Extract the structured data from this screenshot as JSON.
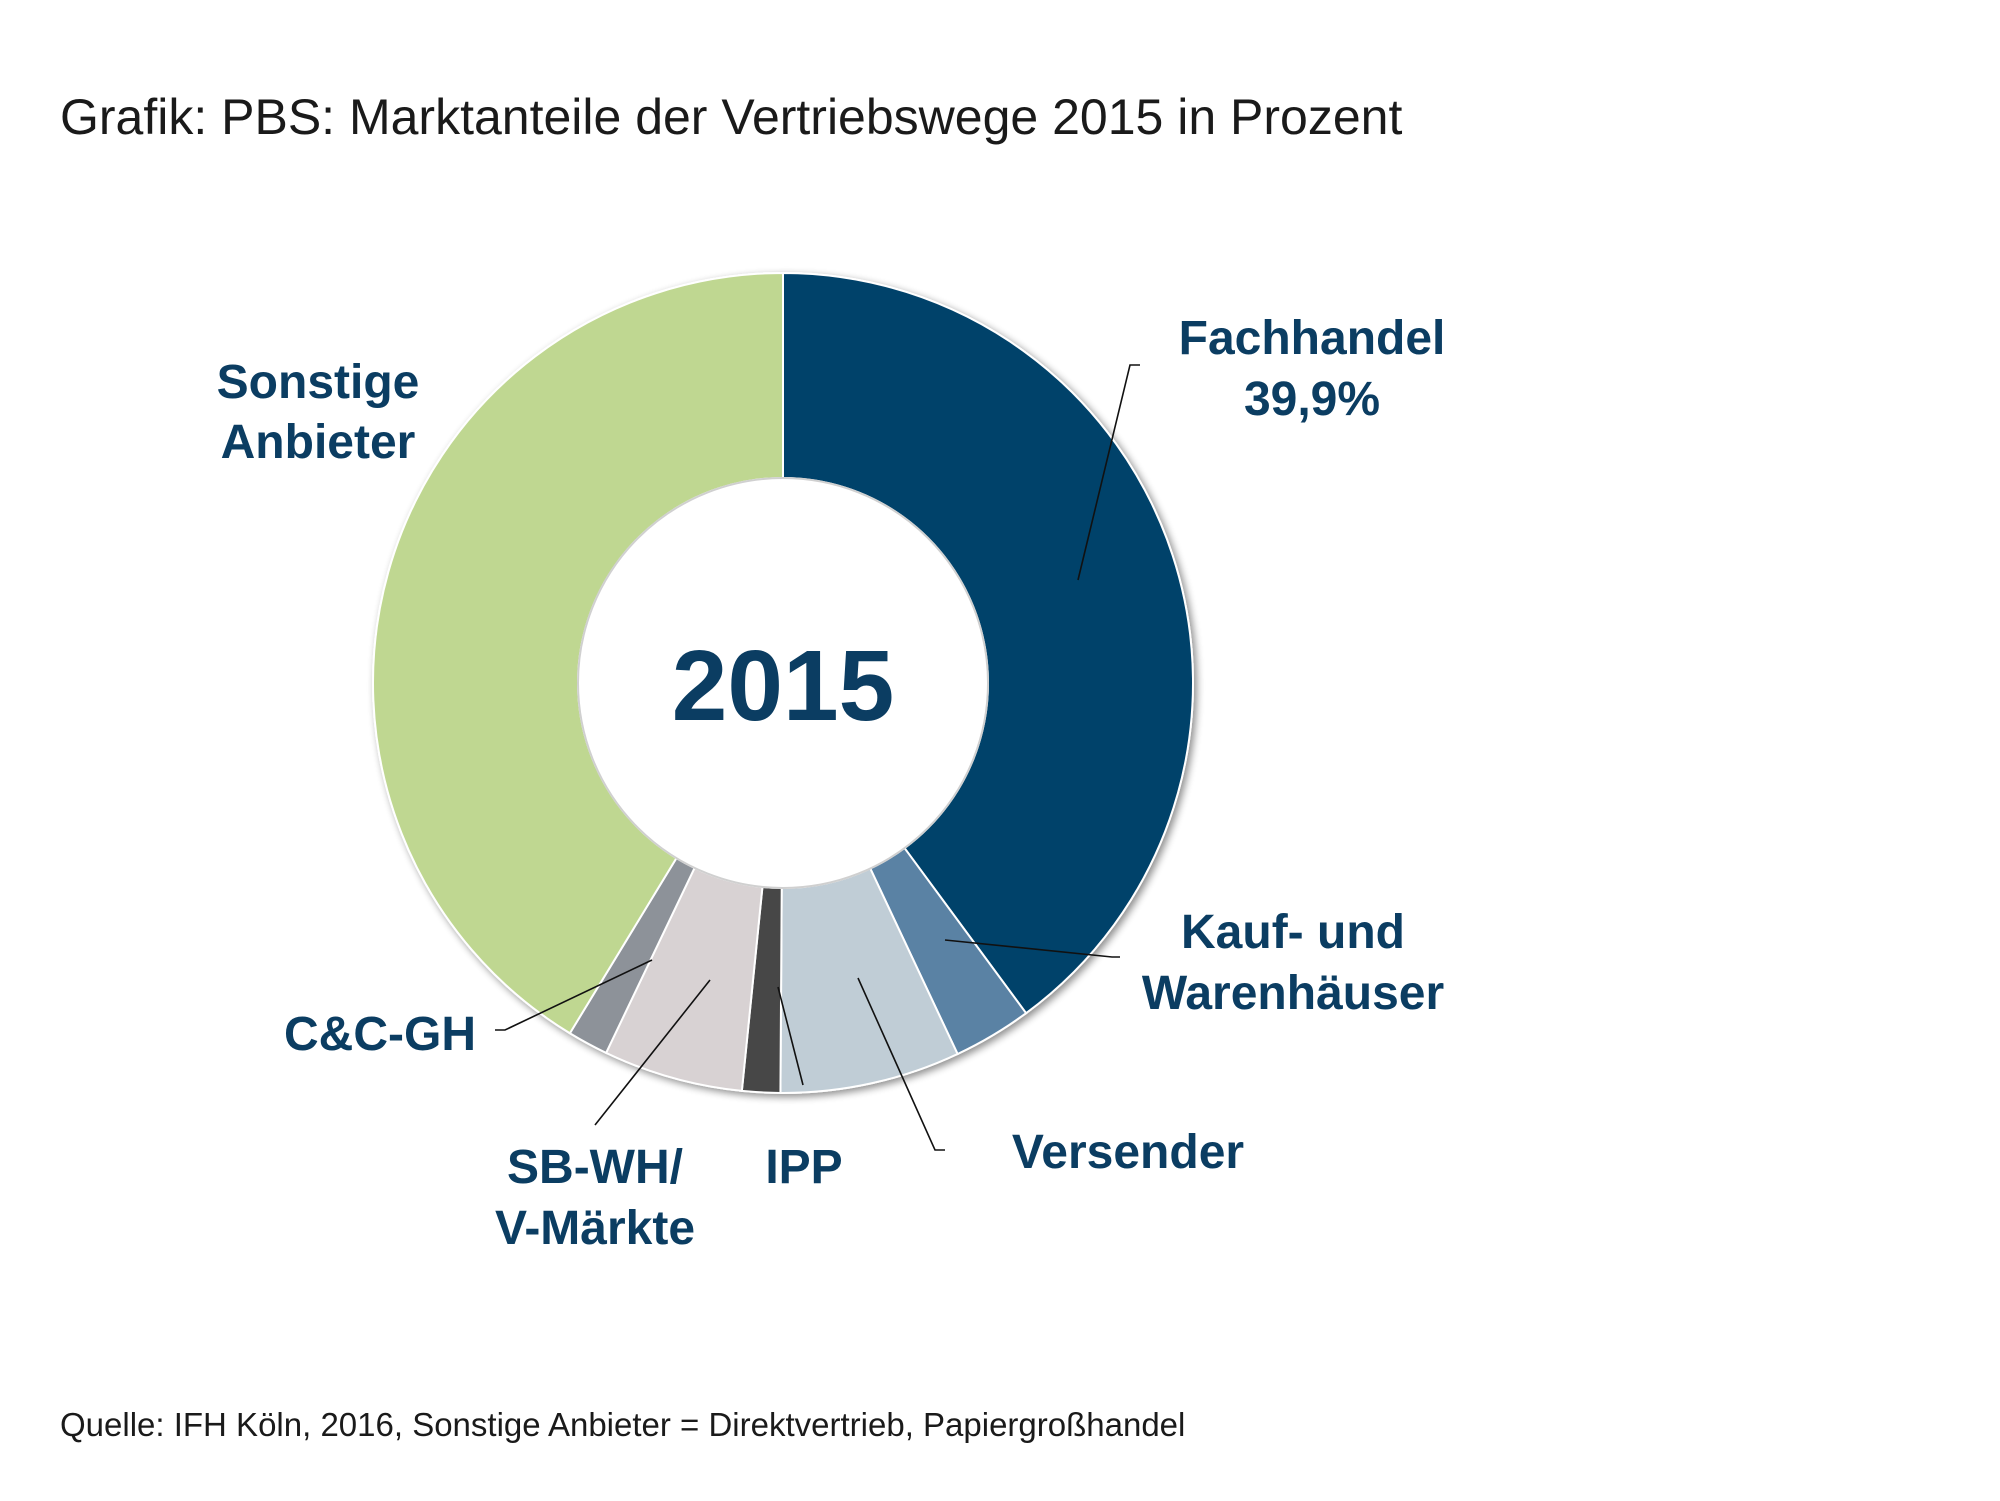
{
  "title": "Grafik: PBS: Marktanteile der Vertriebswege 2015 in Prozent",
  "source": "Quelle: IFH Köln, 2016,  Sonstige Anbieter = Direktvertrieb, Papiergroßhandel",
  "chart_data": {
    "type": "pie",
    "style": "donut",
    "center_label": "2015",
    "slices": [
      {
        "label": "Fachhandel",
        "value_label": "39,9%",
        "value": 39.9,
        "color": "#03426a"
      },
      {
        "label": "Kauf- und Warenhäuser",
        "value_label": "",
        "value": 3.1,
        "color": "#5a82a4"
      },
      {
        "label": "Versender",
        "value_label": "",
        "value": 7.1,
        "color": "#c0cdd6"
      },
      {
        "label": "IPP",
        "value_label": "",
        "value": 1.5,
        "color": "#474747"
      },
      {
        "label": "SB-WH/ V-Märkte",
        "value_label": "",
        "value": 5.5,
        "color": "#d8d2d3"
      },
      {
        "label": "C&C-GH",
        "value_label": "",
        "value": 1.6,
        "color": "#8d9299"
      },
      {
        "label": "Sonstige Anbieter",
        "value_label": "",
        "value": 41.3,
        "color": "#bfd791"
      }
    ]
  }
}
